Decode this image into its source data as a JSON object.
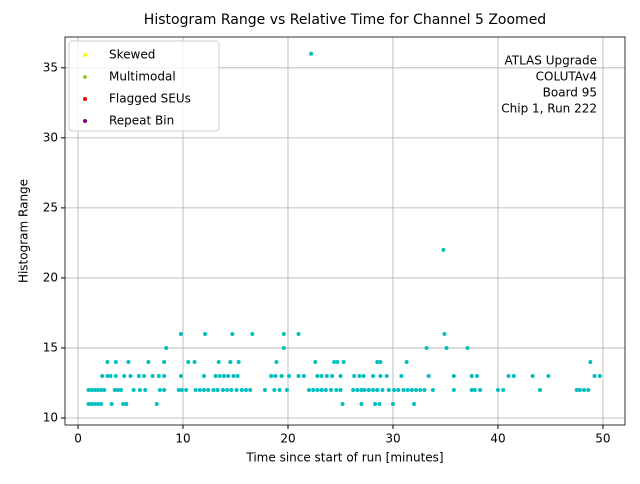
{
  "chart_data": {
    "type": "scatter",
    "title": "Histogram Range vs Relative Time for Channel 5 Zoomed",
    "x_label": "Time since start of run [minutes]",
    "y_label": "Histogram Range",
    "annotation": [
      "ATLAS Upgrade",
      "COLUTAv4",
      "Board 95",
      "Chip 1, Run 222"
    ],
    "color": "#00bfbf",
    "x": [
      1.0,
      1.3,
      1.6,
      1.9,
      2.2,
      3.2,
      4.3,
      4.6,
      7.5,
      25.2,
      27,
      28.3,
      28.7,
      30,
      32,
      1,
      1.3,
      1.6,
      1.9,
      2.2,
      2.5,
      3.5,
      3.8,
      4.1,
      5.3,
      5.9,
      6.4,
      7.8,
      8.2,
      9.6,
      9.9,
      10.3,
      11.2,
      11.6,
      12.0,
      12.4,
      12.9,
      13.3,
      13.8,
      14.2,
      14.6,
      15.1,
      15.6,
      16.0,
      16.4,
      17.8,
      18.7,
      19.2,
      19.9,
      22.0,
      22.4,
      22.8,
      23.2,
      23.6,
      24.1,
      24.6,
      25.0,
      26.2,
      26.6,
      27.0,
      27.3,
      27.7,
      28.1,
      28.5,
      29.0,
      29.6,
      30.1,
      30.5,
      31.0,
      31.4,
      31.8,
      32.2,
      32.6,
      33.0,
      33.8,
      35.8,
      37.5,
      37.8,
      38.3,
      40.0,
      40.5,
      44.0,
      47.5,
      47.8,
      48.2,
      48.6,
      2.3,
      2.8,
      3.1,
      3.6,
      4.4,
      5.0,
      5.8,
      6.3,
      7.1,
      7.7,
      8.2,
      9.8,
      12.0,
      13.1,
      13.5,
      13.9,
      14.3,
      14.8,
      15.2,
      18.4,
      18.8,
      19.4,
      20.1,
      21.0,
      21.5,
      22.8,
      23.2,
      23.7,
      24.2,
      25.0,
      26.3,
      26.8,
      27.2,
      28.1,
      28.8,
      29.4,
      30.8,
      33.4,
      35.8,
      37.5,
      38.0,
      41.0,
      41.5,
      43.3,
      44.8,
      49.2,
      49.7,
      2.8,
      3.6,
      4.8,
      6.7,
      8.2,
      10.5,
      11.1,
      13.4,
      14.5,
      15.3,
      18.9,
      22.6,
      24.4,
      24.7,
      25.3,
      28.5,
      28.8,
      31.3,
      48.8,
      8.4,
      19.6,
      33.2,
      35.1,
      37.1,
      9.8,
      12.1,
      14.7,
      16.6,
      19.6,
      21.0,
      34.9,
      34.8,
      22.2
    ],
    "y": [
      11,
      11,
      11,
      11,
      11,
      11,
      11,
      11,
      11,
      11,
      11,
      11,
      11,
      11,
      11,
      12,
      12,
      12,
      12,
      12,
      12,
      12,
      12,
      12,
      12,
      12,
      12,
      12,
      12,
      12,
      12,
      12,
      12,
      12,
      12,
      12,
      12,
      12,
      12,
      12,
      12,
      12,
      12,
      12,
      12,
      12,
      12,
      12,
      12,
      12,
      12,
      12,
      12,
      12,
      12,
      12,
      12,
      12,
      12,
      12,
      12,
      12,
      12,
      12,
      12,
      12,
      12,
      12,
      12,
      12,
      12,
      12,
      12,
      12,
      12,
      12,
      12,
      12,
      12,
      12,
      12,
      12,
      12,
      12,
      12,
      12,
      13,
      13,
      13,
      13,
      13,
      13,
      13,
      13,
      13,
      13,
      13,
      13,
      13,
      13,
      13,
      13,
      13,
      13,
      13,
      13,
      13,
      13,
      13,
      13,
      13,
      13,
      13,
      13,
      13,
      13,
      13,
      13,
      13,
      13,
      13,
      13,
      13,
      13,
      13,
      13,
      13,
      13,
      13,
      13,
      13,
      13,
      13,
      14,
      14,
      14,
      14,
      14,
      14,
      14,
      14,
      14,
      14,
      14,
      14,
      14,
      14,
      14,
      14,
      14,
      14,
      14,
      15,
      15,
      15,
      15,
      15,
      16,
      16,
      16,
      16,
      16,
      16,
      16,
      22,
      36
    ],
    "series": [
      {
        "name": "Skewed",
        "color": "#ffff00",
        "x": [],
        "y": []
      },
      {
        "name": "Multimodal",
        "color": "#9acd32",
        "x": [],
        "y": []
      },
      {
        "name": "Flagged SEUs",
        "color": "#ff0000",
        "x": [],
        "y": []
      },
      {
        "name": "Repeat Bin",
        "color": "#800080",
        "x": [],
        "y": []
      }
    ],
    "xlim": [
      -1.24,
      52.1
    ],
    "ylim": [
      9.5,
      37.2
    ],
    "xticks": [
      0,
      10,
      20,
      30,
      40,
      50
    ],
    "yticks": [
      10,
      15,
      20,
      25,
      30,
      35
    ],
    "grid": true,
    "legend": "upper left"
  }
}
